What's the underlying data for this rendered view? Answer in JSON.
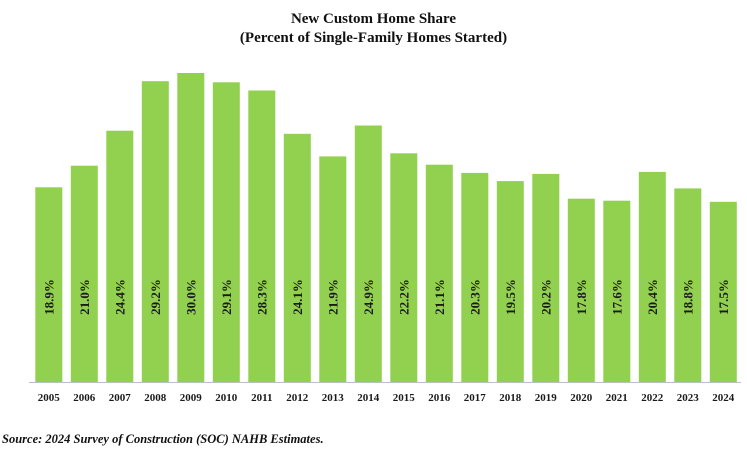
{
  "chart_data": {
    "type": "bar",
    "title": "New Custom Home Share",
    "subtitle": "(Percent of Single-Family Homes Started)",
    "categories": [
      "2005",
      "2006",
      "2007",
      "2008",
      "2009",
      "2010",
      "2011",
      "2012",
      "2013",
      "2014",
      "2015",
      "2016",
      "2017",
      "2018",
      "2019",
      "2020",
      "2021",
      "2022",
      "2023",
      "2024"
    ],
    "values": [
      18.9,
      21.0,
      24.4,
      29.2,
      30.0,
      29.1,
      28.3,
      24.1,
      21.9,
      24.9,
      22.2,
      21.1,
      20.3,
      19.5,
      20.2,
      17.8,
      17.6,
      20.4,
      18.8,
      17.5
    ],
    "data_labels": [
      "18.9%",
      "21.0%",
      "24.4%",
      "29.2%",
      "30.0%",
      "29.1%",
      "28.3%",
      "24.1%",
      "21.9%",
      "24.9%",
      "22.2%",
      "21.1%",
      "20.3%",
      "19.5%",
      "20.2%",
      "17.8%",
      "17.6%",
      "20.4%",
      "18.8%",
      "17.5%"
    ],
    "xlabel": "",
    "ylabel": "",
    "ylim": [
      0,
      30
    ],
    "grid": false,
    "legend": "none",
    "colors": {
      "bar": "#92d050",
      "axis": "#bfbfbf"
    }
  },
  "source_note": "Source: 2024 Survey of Construction (SOC) NAHB Estimates."
}
